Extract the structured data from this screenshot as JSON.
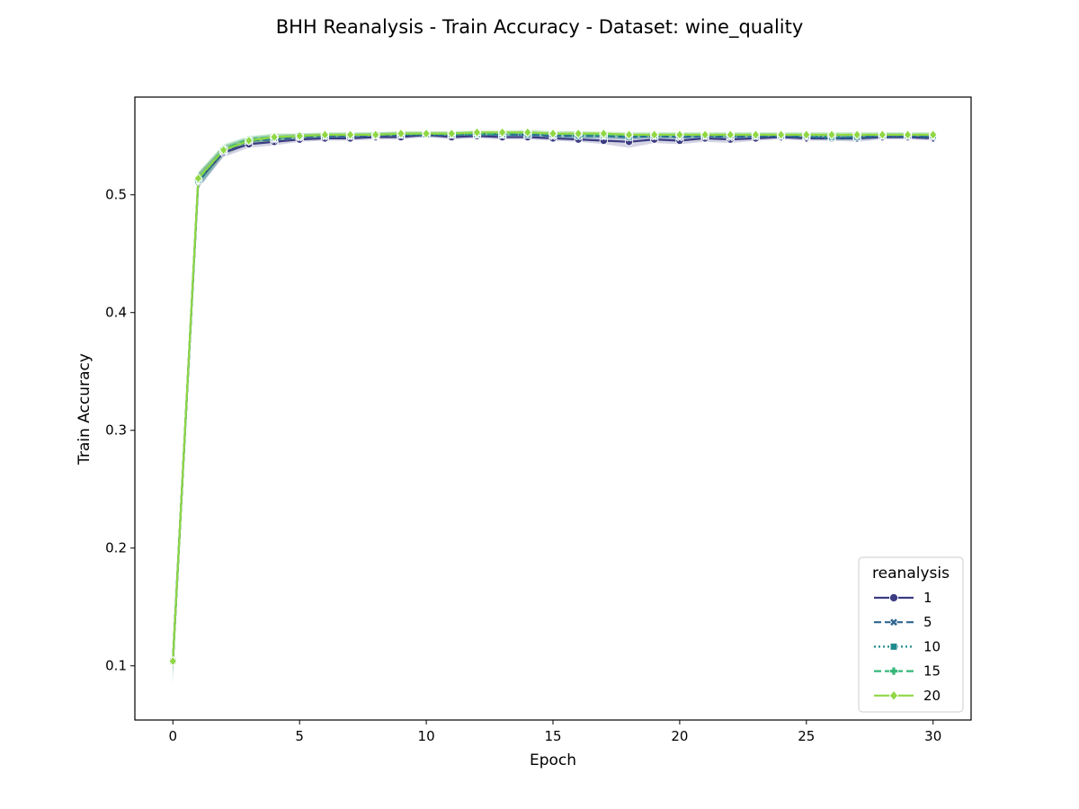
{
  "chart_data": {
    "type": "line",
    "title": "BHH Reanalysis - Train Accuracy - Dataset: wine_quality",
    "xlabel": "Epoch",
    "ylabel": "Train Accuracy",
    "xlim": [
      -1.5,
      31.5
    ],
    "ylim": [
      0.054,
      0.583
    ],
    "xticks": [
      0,
      5,
      10,
      15,
      20,
      25,
      30
    ],
    "xtick_labels": [
      "0",
      "5",
      "10",
      "15",
      "20",
      "25",
      "30"
    ],
    "yticks": [
      0.1,
      0.2,
      0.3,
      0.4,
      0.5
    ],
    "ytick_labels": [
      "0.1",
      "0.2",
      "0.3",
      "0.4",
      "0.5"
    ],
    "grid": false,
    "legend": {
      "title": "reanalysis",
      "placement": "lower-right"
    },
    "x": [
      0,
      1,
      2,
      3,
      4,
      5,
      6,
      7,
      8,
      9,
      10,
      11,
      12,
      13,
      14,
      15,
      16,
      17,
      18,
      19,
      20,
      21,
      22,
      23,
      24,
      25,
      26,
      27,
      28,
      29,
      30
    ],
    "series": [
      {
        "name": "1",
        "color": "#3b3c83",
        "dash": "solid",
        "marker": "circle",
        "values": [
          0.104,
          0.512,
          0.536,
          0.543,
          0.545,
          0.547,
          0.548,
          0.548,
          0.549,
          0.549,
          0.551,
          0.549,
          0.55,
          0.549,
          0.549,
          0.548,
          0.547,
          0.546,
          0.545,
          0.547,
          0.546,
          0.548,
          0.547,
          0.548,
          0.549,
          0.548,
          0.548,
          0.548,
          0.549,
          0.549,
          0.548
        ],
        "band": [
          0.008,
          0.006,
          0.004,
          0.003,
          0.003,
          0.002,
          0.002,
          0.002,
          0.002,
          0.002,
          0.002,
          0.002,
          0.002,
          0.002,
          0.002,
          0.002,
          0.002,
          0.003,
          0.005,
          0.003,
          0.003,
          0.003,
          0.003,
          0.002,
          0.002,
          0.002,
          0.002,
          0.003,
          0.002,
          0.002,
          0.002
        ]
      },
      {
        "name": "5",
        "color": "#2f6690",
        "dash": "dashed",
        "marker": "x",
        "values": [
          0.104,
          0.511,
          0.537,
          0.546,
          0.547,
          0.549,
          0.55,
          0.55,
          0.55,
          0.551,
          0.551,
          0.551,
          0.552,
          0.551,
          0.551,
          0.55,
          0.55,
          0.55,
          0.549,
          0.55,
          0.549,
          0.55,
          0.549,
          0.55,
          0.55,
          0.549,
          0.548,
          0.549,
          0.55,
          0.55,
          0.549
        ],
        "band": [
          0.01,
          0.006,
          0.004,
          0.003,
          0.003,
          0.002,
          0.002,
          0.002,
          0.002,
          0.002,
          0.002,
          0.002,
          0.002,
          0.002,
          0.002,
          0.002,
          0.002,
          0.002,
          0.002,
          0.002,
          0.002,
          0.002,
          0.002,
          0.002,
          0.002,
          0.002,
          0.002,
          0.002,
          0.002,
          0.002,
          0.002
        ]
      },
      {
        "name": "10",
        "color": "#1f8a8b",
        "dash": "dotted",
        "marker": "square",
        "values": [
          0.104,
          0.512,
          0.538,
          0.546,
          0.548,
          0.55,
          0.55,
          0.55,
          0.551,
          0.551,
          0.551,
          0.551,
          0.551,
          0.551,
          0.551,
          0.551,
          0.55,
          0.55,
          0.549,
          0.55,
          0.55,
          0.55,
          0.55,
          0.55,
          0.55,
          0.55,
          0.549,
          0.549,
          0.55,
          0.55,
          0.55
        ],
        "band": [
          0.02,
          0.007,
          0.004,
          0.003,
          0.003,
          0.002,
          0.002,
          0.002,
          0.002,
          0.002,
          0.002,
          0.002,
          0.002,
          0.002,
          0.002,
          0.002,
          0.002,
          0.002,
          0.002,
          0.002,
          0.002,
          0.002,
          0.002,
          0.002,
          0.002,
          0.002,
          0.002,
          0.003,
          0.002,
          0.002,
          0.002
        ]
      },
      {
        "name": "15",
        "color": "#35b779",
        "dash": "dashed",
        "marker": "plus",
        "values": [
          0.104,
          0.513,
          0.539,
          0.547,
          0.549,
          0.55,
          0.551,
          0.551,
          0.551,
          0.552,
          0.552,
          0.552,
          0.552,
          0.552,
          0.553,
          0.552,
          0.552,
          0.551,
          0.551,
          0.551,
          0.551,
          0.551,
          0.551,
          0.551,
          0.551,
          0.551,
          0.551,
          0.551,
          0.551,
          0.551,
          0.551
        ],
        "band": [
          0.012,
          0.006,
          0.004,
          0.003,
          0.003,
          0.002,
          0.002,
          0.002,
          0.002,
          0.002,
          0.002,
          0.002,
          0.002,
          0.002,
          0.002,
          0.002,
          0.002,
          0.002,
          0.002,
          0.002,
          0.002,
          0.002,
          0.002,
          0.002,
          0.002,
          0.002,
          0.002,
          0.002,
          0.002,
          0.002,
          0.002
        ]
      },
      {
        "name": "20",
        "color": "#8fd744",
        "dash": "solid",
        "marker": "diamond",
        "values": [
          0.104,
          0.514,
          0.538,
          0.546,
          0.549,
          0.55,
          0.551,
          0.551,
          0.551,
          0.552,
          0.552,
          0.552,
          0.553,
          0.553,
          0.553,
          0.552,
          0.552,
          0.552,
          0.551,
          0.551,
          0.551,
          0.551,
          0.551,
          0.551,
          0.551,
          0.551,
          0.551,
          0.551,
          0.551,
          0.551,
          0.551
        ],
        "band": [
          0.008,
          0.005,
          0.004,
          0.003,
          0.003,
          0.002,
          0.002,
          0.002,
          0.002,
          0.002,
          0.002,
          0.002,
          0.002,
          0.002,
          0.002,
          0.002,
          0.002,
          0.002,
          0.002,
          0.002,
          0.002,
          0.002,
          0.002,
          0.002,
          0.002,
          0.002,
          0.002,
          0.002,
          0.002,
          0.002,
          0.002
        ]
      }
    ]
  }
}
